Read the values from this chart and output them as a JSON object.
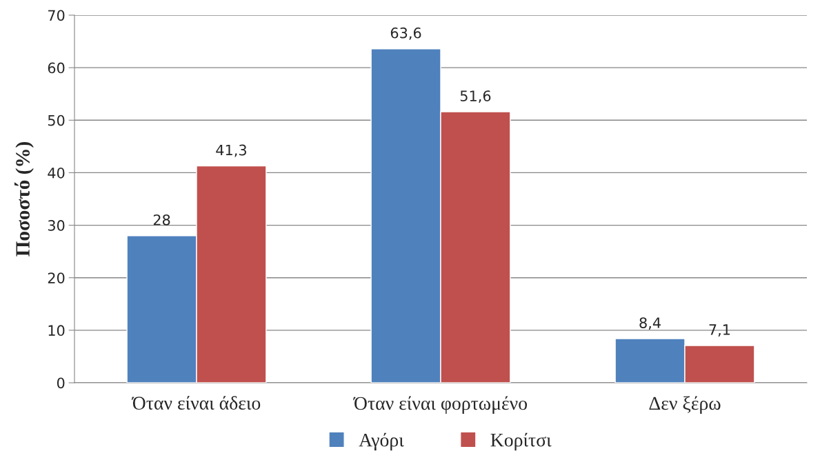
{
  "chart_data": {
    "type": "bar",
    "ylabel": "Ποσοστό (%)",
    "categories": [
      "Όταν είναι άδειο",
      "Όταν είναι φορτωμένο",
      "Δεν ξέρω"
    ],
    "series": [
      {
        "name": "Αγόρι",
        "color": "#4f81bd",
        "values": [
          28,
          63.6,
          8.4
        ],
        "value_labels": [
          "28",
          "63,6",
          "8,4"
        ]
      },
      {
        "name": "Κορίτσι",
        "color": "#c0504d",
        "values": [
          41.3,
          51.6,
          7.1
        ],
        "value_labels": [
          "41,3",
          "51,6",
          "7,1"
        ]
      }
    ],
    "ylim": [
      0,
      70
    ],
    "yticks": [
      0,
      10,
      20,
      30,
      40,
      50,
      60,
      70
    ],
    "grid": "y",
    "legend": "bottom"
  }
}
